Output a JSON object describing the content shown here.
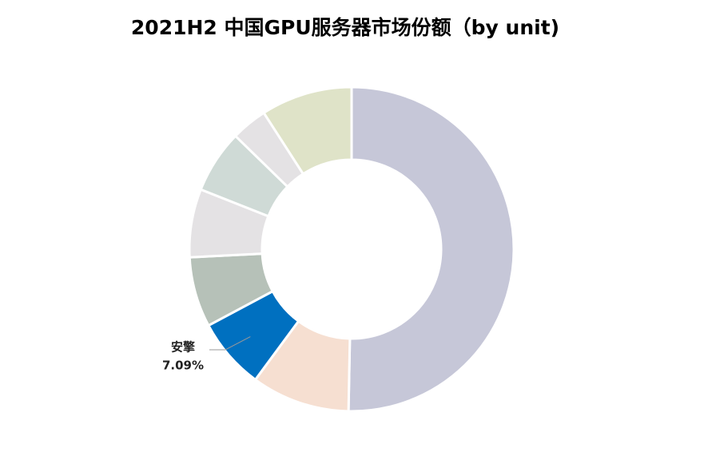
{
  "chart_data": {
    "type": "donut",
    "title": "2021H2 中国GPU服务器市场份额（by unit)",
    "categories": [
      null,
      null,
      "安擎",
      null,
      null,
      null,
      null,
      null
    ],
    "values": [
      50.3,
      9.8,
      7.09,
      7.0,
      6.8,
      6.3,
      3.6,
      9.1
    ],
    "value_labels": [
      null,
      null,
      "7.09%",
      null,
      null,
      null,
      null,
      null
    ],
    "colors": [
      "#c6c7d8",
      "#f6dfd1",
      "#0070c0",
      "#b6c1b8",
      "#e4e2e4",
      "#cfdad6",
      "#e4e2e4",
      "#dfe3c8"
    ]
  }
}
